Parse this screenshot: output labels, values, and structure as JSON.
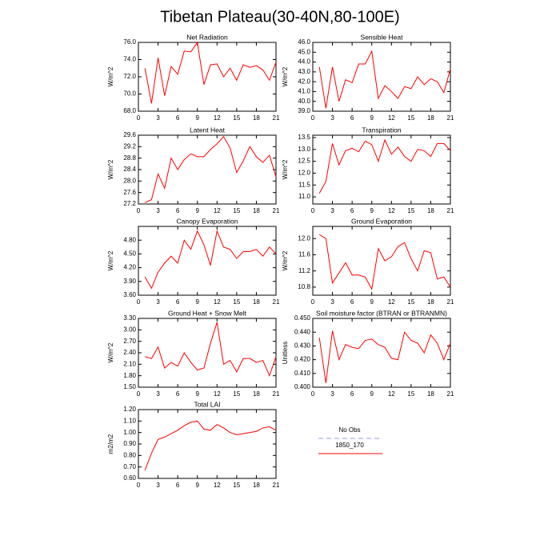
{
  "title": "Tibetan Plateau(30-40N,80-100E)",
  "legend": [
    {
      "name": "No Obs",
      "color": "#9999ff",
      "dashed": true
    },
    {
      "name": "1850_170",
      "color": "#ff0000",
      "dashed": false
    }
  ],
  "chart_data": [
    {
      "type": "line",
      "title": "Net Radiation",
      "y_label": "W/m^2",
      "color": "#ff0000",
      "x": [
        1,
        2,
        3,
        4,
        5,
        6,
        7,
        8,
        9,
        10,
        11,
        12,
        13,
        14,
        15,
        16,
        17,
        18,
        19,
        20,
        21
      ],
      "values": [
        73.0,
        68.9,
        74.2,
        69.8,
        73.2,
        72.3,
        75.0,
        74.9,
        76.0,
        71.1,
        73.4,
        73.5,
        72.0,
        73.0,
        71.6,
        73.4,
        73.1,
        73.3,
        72.8,
        71.6,
        73.7
      ],
      "xlim": [
        0,
        21
      ],
      "xticks": [
        0,
        3,
        6,
        9,
        12,
        15,
        18,
        21
      ],
      "ylim": [
        68,
        76
      ],
      "yticks": [
        {
          "value": 68,
          "label": "68.0"
        },
        {
          "value": 70,
          "label": "70.0"
        },
        {
          "value": 72,
          "label": "72.0"
        },
        {
          "value": 74,
          "label": "74.0"
        },
        {
          "value": 76,
          "label": "76.0"
        }
      ]
    },
    {
      "type": "line",
      "title": "Sensible Heat",
      "y_label": "W/m^2",
      "color": "#ff0000",
      "x": [
        1,
        2,
        3,
        4,
        5,
        6,
        7,
        8,
        9,
        10,
        11,
        12,
        13,
        14,
        15,
        16,
        17,
        18,
        19,
        20,
        21
      ],
      "values": [
        43.5,
        39.3,
        43.5,
        40.0,
        42.2,
        41.9,
        43.8,
        43.8,
        45.1,
        40.3,
        41.6,
        41.0,
        40.3,
        41.5,
        41.3,
        42.5,
        41.7,
        42.3,
        42.0,
        40.9,
        43.3
      ],
      "xlim": [
        0,
        21
      ],
      "xticks": [
        0,
        3,
        6,
        9,
        12,
        15,
        18,
        21
      ],
      "ylim": [
        39,
        46
      ],
      "yticks": [
        {
          "value": 39,
          "label": "39.0"
        },
        {
          "value": 40,
          "label": "40.0"
        },
        {
          "value": 41,
          "label": "41.0"
        },
        {
          "value": 42,
          "label": "42.0"
        },
        {
          "value": 43,
          "label": "43.0"
        },
        {
          "value": 44,
          "label": "44.0"
        },
        {
          "value": 45,
          "label": "45.0"
        },
        {
          "value": 46,
          "label": "46.0"
        }
      ]
    },
    {
      "type": "line",
      "title": "Latent Heat",
      "y_label": "W/m^2",
      "color": "#ff0000",
      "x": [
        1,
        2,
        3,
        4,
        5,
        6,
        7,
        8,
        9,
        10,
        11,
        12,
        13,
        14,
        15,
        16,
        17,
        18,
        19,
        20,
        21
      ],
      "values": [
        27.25,
        27.35,
        28.25,
        27.75,
        28.8,
        28.4,
        28.75,
        28.95,
        28.85,
        28.85,
        29.1,
        29.3,
        29.55,
        29.15,
        28.3,
        28.7,
        29.2,
        28.85,
        28.65,
        28.9,
        28.15
      ],
      "xlim": [
        0,
        21
      ],
      "xticks": [
        0,
        3,
        6,
        9,
        12,
        15,
        18,
        21
      ],
      "ylim": [
        27.2,
        29.6
      ],
      "yticks": [
        27.2,
        27.6,
        {
          "value": 28,
          "label": "28.0"
        },
        28.4,
        28.8,
        29.2,
        29.6
      ]
    },
    {
      "type": "line",
      "title": "Transpiration",
      "y_label": "W/m^2",
      "color": "#ff0000",
      "x": [
        1,
        2,
        3,
        4,
        5,
        6,
        7,
        8,
        9,
        10,
        11,
        12,
        13,
        14,
        15,
        16,
        17,
        18,
        19,
        20,
        21
      ],
      "values": [
        11.15,
        11.65,
        13.25,
        12.35,
        12.95,
        13.05,
        12.9,
        13.35,
        13.2,
        12.5,
        13.4,
        12.8,
        13.1,
        12.7,
        12.5,
        13.0,
        12.95,
        12.7,
        13.25,
        13.25,
        12.95
      ],
      "xlim": [
        0,
        21
      ],
      "xticks": [
        0,
        3,
        6,
        9,
        12,
        15,
        18,
        21
      ],
      "ylim": [
        10.7,
        13.6
      ],
      "yticks": [
        {
          "value": 11,
          "label": "11.0"
        },
        11.5,
        {
          "value": 12,
          "label": "12.0"
        },
        12.5,
        {
          "value": 13,
          "label": "13.0"
        },
        13.5
      ]
    },
    {
      "type": "line",
      "title": "Canopy Evaporation",
      "y_label": "W/m^2",
      "color": "#ff0000",
      "x": [
        1,
        2,
        3,
        4,
        5,
        6,
        7,
        8,
        9,
        10,
        11,
        12,
        13,
        14,
        15,
        16,
        17,
        18,
        19,
        20,
        21
      ],
      "values": [
        4.0,
        3.75,
        4.1,
        4.3,
        4.45,
        4.3,
        4.8,
        4.6,
        5.0,
        4.7,
        4.25,
        5.0,
        4.65,
        4.6,
        4.4,
        4.55,
        4.55,
        4.6,
        4.45,
        4.65,
        4.5
      ],
      "xlim": [
        0,
        21
      ],
      "xticks": [
        0,
        3,
        6,
        9,
        12,
        15,
        18,
        21
      ],
      "ylim": [
        3.6,
        5.1
      ],
      "yticks": [
        {
          "value": 3.6,
          "label": "3.60"
        },
        {
          "value": 3.9,
          "label": "3.90"
        },
        {
          "value": 4.2,
          "label": "4.20"
        },
        {
          "value": 4.5,
          "label": "4.50"
        },
        {
          "value": 4.8,
          "label": "4.80"
        }
      ]
    },
    {
      "type": "line",
      "title": "Ground Evaporation",
      "y_label": "W/m^2",
      "color": "#ff0000",
      "x": [
        1,
        2,
        3,
        4,
        5,
        6,
        7,
        8,
        9,
        10,
        11,
        12,
        13,
        14,
        15,
        16,
        17,
        18,
        19,
        20,
        21
      ],
      "values": [
        12.1,
        12.0,
        10.9,
        11.15,
        11.4,
        11.1,
        11.1,
        11.05,
        10.75,
        11.75,
        11.45,
        11.55,
        11.8,
        11.9,
        11.5,
        11.2,
        11.7,
        11.65,
        11.0,
        11.05,
        10.8
      ],
      "xlim": [
        0,
        21
      ],
      "xticks": [
        0,
        3,
        6,
        9,
        12,
        15,
        18,
        21
      ],
      "ylim": [
        10.6,
        12.3
      ],
      "yticks": [
        10.8,
        11.2,
        11.6,
        {
          "value": 12,
          "label": "12.0"
        }
      ]
    },
    {
      "type": "line",
      "title": "Ground Heat + Snow Melt",
      "y_label": "W/m^2",
      "color": "#ff0000",
      "x": [
        1,
        2,
        3,
        4,
        5,
        6,
        7,
        8,
        9,
        10,
        11,
        12,
        13,
        14,
        15,
        16,
        17,
        18,
        19,
        20,
        21
      ],
      "values": [
        2.3,
        2.25,
        2.55,
        2.0,
        2.15,
        2.05,
        2.4,
        2.15,
        1.95,
        2.0,
        2.65,
        3.2,
        2.1,
        2.2,
        1.9,
        2.25,
        2.25,
        2.15,
        2.2,
        1.8,
        2.3
      ],
      "xlim": [
        0,
        21
      ],
      "xticks": [
        0,
        3,
        6,
        9,
        12,
        15,
        18,
        21
      ],
      "ylim": [
        1.5,
        3.3
      ],
      "yticks": [
        {
          "value": 1.5,
          "label": "1.50"
        },
        {
          "value": 1.8,
          "label": "1.80"
        },
        {
          "value": 2.1,
          "label": "2.10"
        },
        {
          "value": 2.4,
          "label": "2.40"
        },
        {
          "value": 2.7,
          "label": "2.70"
        },
        {
          "value": 3,
          "label": "3.00"
        },
        {
          "value": 3.3,
          "label": "3.30"
        }
      ]
    },
    {
      "type": "line",
      "title": "Soil moisture factor (BTRAN or BTRANMN)",
      "y_label": "Unitless",
      "color": "#ff0000",
      "x": [
        1,
        2,
        3,
        4,
        5,
        6,
        7,
        8,
        9,
        10,
        11,
        12,
        13,
        14,
        15,
        16,
        17,
        18,
        19,
        20,
        21
      ],
      "values": [
        0.436,
        0.403,
        0.441,
        0.42,
        0.431,
        0.429,
        0.428,
        0.434,
        0.435,
        0.431,
        0.429,
        0.421,
        0.42,
        0.44,
        0.434,
        0.432,
        0.425,
        0.438,
        0.432,
        0.42,
        0.432
      ],
      "xlim": [
        0,
        21
      ],
      "xticks": [
        0,
        3,
        6,
        9,
        12,
        15,
        18,
        21
      ],
      "ylim": [
        0.4,
        0.45
      ],
      "yticks": [
        {
          "value": 0.4,
          "label": "0.400"
        },
        {
          "value": 0.41,
          "label": "0.410"
        },
        {
          "value": 0.42,
          "label": "0.420"
        },
        {
          "value": 0.43,
          "label": "0.430"
        },
        {
          "value": 0.44,
          "label": "0.440"
        },
        {
          "value": 0.45,
          "label": "0.450"
        }
      ]
    },
    {
      "type": "line",
      "title": "Total LAI",
      "y_label": "m2/m2",
      "color": "#ff0000",
      "x": [
        1,
        2,
        3,
        4,
        5,
        6,
        7,
        8,
        9,
        10,
        11,
        12,
        13,
        14,
        15,
        16,
        17,
        18,
        19,
        20,
        21
      ],
      "values": [
        0.67,
        0.82,
        0.94,
        0.96,
        0.99,
        1.02,
        1.06,
        1.09,
        1.1,
        1.03,
        1.02,
        1.07,
        1.04,
        1.0,
        0.98,
        0.99,
        1.0,
        1.01,
        1.04,
        1.05,
        1.02
      ],
      "xlim": [
        0,
        21
      ],
      "xticks": [
        0,
        3,
        6,
        9,
        12,
        15,
        18,
        21
      ],
      "ylim": [
        0.6,
        1.2
      ],
      "yticks": [
        {
          "value": 0.6,
          "label": "0.60"
        },
        {
          "value": 0.7,
          "label": "0.70"
        },
        {
          "value": 0.8,
          "label": "0.80"
        },
        {
          "value": 0.9,
          "label": "0.90"
        },
        {
          "value": 1,
          "label": "1.00"
        },
        {
          "value": 1.1,
          "label": "1.10"
        },
        {
          "value": 1.2,
          "label": "1.20"
        }
      ]
    }
  ]
}
